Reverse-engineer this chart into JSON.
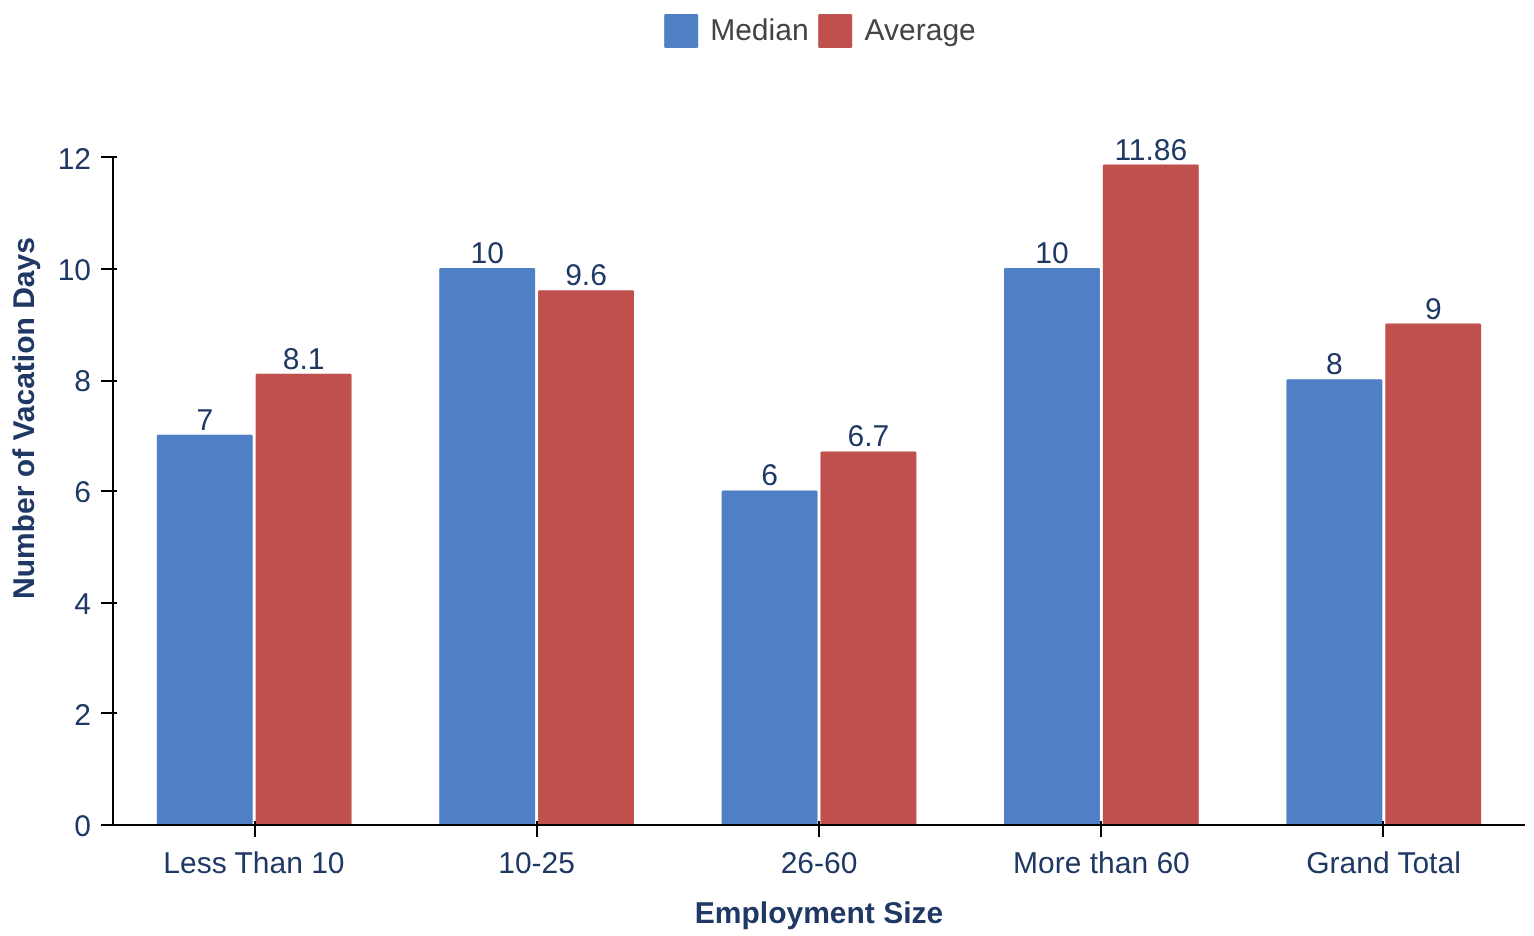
{
  "chart_data": {
    "type": "bar",
    "xlabel": "Employment Size",
    "ylabel": "Number of Vacation Days",
    "categories": [
      "Less Than 10",
      "10-25",
      "26-60",
      "More than 60",
      "Grand Total"
    ],
    "series": [
      {
        "name": "Median",
        "color": "#4f7fc4",
        "values": [
          7,
          10,
          6,
          10,
          8
        ]
      },
      {
        "name": "Average",
        "color": "#c0504d",
        "values": [
          8.1,
          9.6,
          6.7,
          11.86,
          9
        ]
      }
    ],
    "ylim": [
      0,
      12
    ],
    "yticks": [
      0,
      2,
      4,
      6,
      8,
      10,
      12
    ],
    "grid": false,
    "legend": "top",
    "data_labels": true
  }
}
